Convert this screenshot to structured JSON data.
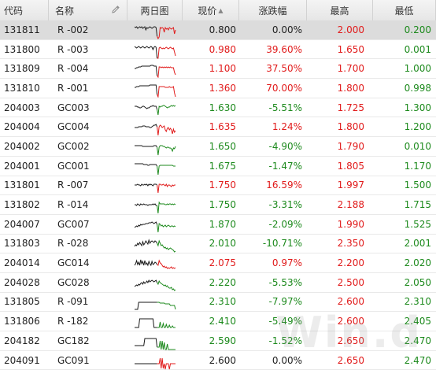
{
  "headers": {
    "code": "代码",
    "name": "名称",
    "spark": "两日图",
    "price": "现价",
    "change": "涨跌幅",
    "high": "最高",
    "low": "最低"
  },
  "sort_indicator": "▲",
  "watermark": "Win.d",
  "colors": {
    "up": "#e11b1b",
    "down": "#1d8a1d",
    "neutral": "#222222",
    "selected_row": "#dcdcdc"
  },
  "rows": [
    {
      "code": "131811",
      "name": "R -002",
      "price": "0.800",
      "change": "0.00%",
      "high": "2.000",
      "low": "0.200",
      "trend": "flat",
      "selected": true,
      "spark": [
        8,
        9,
        8,
        10,
        9,
        8,
        9,
        8,
        10,
        9,
        8,
        12,
        9,
        10,
        9,
        8,
        9,
        10,
        9,
        8,
        8,
        9,
        20,
        26,
        21,
        9,
        10,
        9,
        10,
        15,
        9,
        11,
        10,
        12,
        9,
        10,
        11,
        10,
        9,
        17,
        12
      ]
    },
    {
      "code": "131800",
      "name": "R -003",
      "price": "0.980",
      "change": "39.60%",
      "high": "1.650",
      "low": "0.001",
      "trend": "up",
      "spark": [
        8,
        9,
        10,
        9,
        8,
        9,
        10,
        9,
        8,
        9,
        10,
        9,
        8,
        9,
        10,
        9,
        8,
        9,
        12,
        9,
        8,
        9,
        23,
        27,
        10,
        9,
        10,
        11,
        10,
        11,
        10,
        9,
        10,
        11,
        10,
        9,
        10,
        11,
        10,
        15,
        20
      ]
    },
    {
      "code": "131809",
      "name": "R -004",
      "price": "1.100",
      "change": "37.50%",
      "high": "1.700",
      "low": "1.000",
      "trend": "up",
      "spark": [
        12,
        12,
        11,
        11,
        10,
        10,
        10,
        9,
        9,
        9,
        9,
        9,
        9,
        9,
        9,
        9,
        8,
        8,
        8,
        9,
        9,
        9,
        21,
        24,
        10,
        10,
        11,
        10,
        11,
        10,
        11,
        10,
        11,
        10,
        11,
        10,
        11,
        11,
        11,
        17,
        20
      ]
    },
    {
      "code": "131810",
      "name": "R -001",
      "price": "1.360",
      "change": "70.00%",
      "high": "1.800",
      "low": "0.998",
      "trend": "up",
      "spark": [
        11,
        11,
        10,
        10,
        10,
        9,
        9,
        9,
        9,
        9,
        9,
        9,
        9,
        9,
        9,
        8,
        8,
        8,
        8,
        8,
        8,
        8,
        20,
        26,
        10,
        10,
        10,
        10,
        10,
        10,
        11,
        11,
        11,
        11,
        10,
        11,
        11,
        11,
        10,
        18,
        23
      ]
    },
    {
      "code": "204003",
      "name": "GC003",
      "price": "1.630",
      "change": "-5.51%",
      "high": "1.725",
      "low": "1.300",
      "trend": "down",
      "spark": [
        10,
        10,
        10,
        11,
        11,
        12,
        12,
        11,
        10,
        10,
        11,
        12,
        13,
        12,
        12,
        11,
        10,
        10,
        9,
        10,
        10,
        10,
        14,
        21,
        10,
        11,
        10,
        10,
        9,
        9,
        10,
        11,
        12,
        11,
        11,
        10,
        9,
        10,
        9,
        10,
        9
      ]
    },
    {
      "code": "204004",
      "name": "GC004",
      "price": "1.635",
      "change": "1.24%",
      "high": "1.800",
      "low": "1.200",
      "trend": "up",
      "spark": [
        13,
        13,
        13,
        13,
        12,
        12,
        12,
        12,
        11,
        11,
        11,
        12,
        12,
        12,
        12,
        13,
        13,
        12,
        11,
        10,
        10,
        9,
        12,
        24,
        12,
        10,
        11,
        13,
        12,
        11,
        16,
        18,
        14,
        13,
        16,
        14,
        16,
        21,
        15,
        19,
        17
      ]
    },
    {
      "code": "204002",
      "name": "GC002",
      "price": "1.650",
      "change": "-4.90%",
      "high": "1.790",
      "low": "0.010",
      "trend": "down",
      "spark": [
        11,
        11,
        11,
        11,
        11,
        11,
        11,
        11,
        12,
        12,
        12,
        12,
        12,
        12,
        12,
        12,
        12,
        12,
        12,
        11,
        11,
        11,
        13,
        23,
        13,
        11,
        11,
        11,
        12,
        12,
        13,
        14,
        13,
        13,
        14,
        14,
        15,
        18,
        14,
        15,
        12
      ]
    },
    {
      "code": "204001",
      "name": "GC001",
      "price": "1.675",
      "change": "-1.47%",
      "high": "1.805",
      "low": "1.170",
      "trend": "down",
      "spark": [
        9,
        9,
        9,
        9,
        9,
        9,
        9,
        9,
        9,
        10,
        10,
        10,
        10,
        11,
        11,
        10,
        10,
        10,
        10,
        10,
        10,
        10,
        12,
        23,
        12,
        11,
        11,
        11,
        11,
        11,
        11,
        11,
        11,
        11,
        11,
        11,
        11,
        11,
        12,
        12,
        12
      ]
    },
    {
      "code": "131801",
      "name": "R -007",
      "price": "1.750",
      "change": "16.59%",
      "high": "1.997",
      "low": "1.500",
      "trend": "up",
      "spark": [
        12,
        12,
        12,
        11,
        12,
        12,
        13,
        11,
        12,
        12,
        11,
        12,
        11,
        13,
        11,
        12,
        11,
        12,
        13,
        11,
        11,
        11,
        12,
        22,
        11,
        11,
        12,
        12,
        11,
        12,
        13,
        11,
        14,
        12,
        12,
        13,
        14,
        12,
        13,
        12,
        12
      ]
    },
    {
      "code": "131802",
      "name": "R -014",
      "price": "1.750",
      "change": "-3.31%",
      "high": "2.188",
      "low": "1.715",
      "trend": "down",
      "spark": [
        12,
        12,
        13,
        11,
        12,
        13,
        11,
        12,
        12,
        11,
        12,
        12,
        12,
        13,
        12,
        12,
        12,
        12,
        11,
        12,
        11,
        13,
        13,
        24,
        9,
        11,
        11,
        11,
        11,
        11,
        12,
        12,
        11,
        12,
        11,
        11,
        12,
        11,
        12,
        11,
        12
      ]
    },
    {
      "code": "204007",
      "name": "GC007",
      "price": "1.870",
      "change": "-2.09%",
      "high": "1.990",
      "low": "1.525",
      "trend": "down",
      "spark": [
        16,
        15,
        14,
        15,
        13,
        14,
        12,
        13,
        12,
        12,
        12,
        11,
        11,
        11,
        10,
        10,
        10,
        9,
        10,
        11,
        10,
        9,
        12,
        22,
        11,
        12,
        14,
        13,
        15,
        14,
        13,
        15,
        14,
        13,
        14,
        15,
        14,
        14,
        15,
        14,
        15
      ]
    },
    {
      "code": "131803",
      "name": "R -028",
      "price": "2.010",
      "change": "-10.71%",
      "high": "2.350",
      "low": "2.001",
      "trend": "down",
      "spark": [
        16,
        14,
        15,
        12,
        14,
        11,
        13,
        15,
        10,
        14,
        12,
        9,
        11,
        13,
        8,
        12,
        10,
        9,
        10,
        11,
        9,
        10,
        12,
        15,
        9,
        12,
        15,
        14,
        16,
        18,
        17,
        19,
        18,
        20,
        19,
        18,
        19,
        20,
        21,
        23,
        22
      ]
    },
    {
      "code": "204014",
      "name": "GC014",
      "price": "2.075",
      "change": "0.97%",
      "high": "2.200",
      "low": "2.020",
      "trend": "up",
      "spark": [
        15,
        13,
        9,
        14,
        11,
        15,
        8,
        13,
        10,
        15,
        9,
        14,
        12,
        15,
        10,
        13,
        15,
        10,
        14,
        13,
        11,
        12,
        14,
        15,
        9,
        12,
        13,
        15,
        17,
        16,
        18,
        17,
        19,
        18,
        19,
        18,
        17,
        19,
        18,
        19,
        18
      ]
    },
    {
      "code": "204028",
      "name": "GC028",
      "price": "2.220",
      "change": "-5.53%",
      "high": "2.500",
      "low": "2.050",
      "trend": "down",
      "spark": [
        17,
        16,
        15,
        16,
        14,
        15,
        13,
        12,
        14,
        11,
        13,
        12,
        10,
        12,
        9,
        11,
        10,
        9,
        10,
        11,
        10,
        9,
        12,
        14,
        10,
        12,
        13,
        14,
        15,
        16,
        15,
        17,
        16,
        18,
        19,
        19,
        18,
        21,
        20,
        22,
        21
      ]
    },
    {
      "code": "131805",
      "name": "R -091",
      "price": "2.310",
      "change": "-7.97%",
      "high": "2.600",
      "low": "2.310",
      "trend": "down",
      "spark": [
        22,
        22,
        22,
        22,
        13,
        13,
        13,
        13,
        13,
        13,
        13,
        13,
        13,
        13,
        13,
        13,
        13,
        13,
        13,
        13,
        13,
        13,
        13,
        13,
        13,
        14,
        14,
        14,
        14,
        14,
        15,
        15,
        15,
        15,
        15,
        17,
        17,
        17,
        17,
        17,
        22
      ]
    },
    {
      "code": "131806",
      "name": "R -182",
      "price": "2.410",
      "change": "-5.49%",
      "high": "2.600",
      "low": "2.405",
      "trend": "down",
      "spark": [
        20,
        20,
        20,
        20,
        20,
        9,
        9,
        9,
        9,
        9,
        9,
        9,
        9,
        9,
        9,
        9,
        9,
        9,
        9,
        20,
        20,
        20,
        20,
        20,
        20,
        13,
        20,
        20,
        15,
        20,
        20,
        16,
        20,
        20,
        17,
        20,
        20,
        18,
        20,
        20,
        20
      ]
    },
    {
      "code": "204182",
      "name": "GC182",
      "price": "2.590",
      "change": "-1.52%",
      "high": "2.650",
      "low": "2.470",
      "trend": "down",
      "spark": [
        18,
        18,
        18,
        18,
        18,
        18,
        18,
        18,
        18,
        18,
        9,
        9,
        9,
        9,
        9,
        9,
        9,
        9,
        9,
        9,
        9,
        9,
        20,
        20,
        20,
        12,
        23,
        12,
        23,
        14,
        23,
        23,
        16,
        23,
        23,
        23,
        23,
        23,
        23,
        23,
        23
      ]
    },
    {
      "code": "204091",
      "name": "GC091",
      "price": "2.600",
      "change": "0.00%",
      "high": "2.650",
      "low": "2.470",
      "trend": "flat",
      "spark": [
        16,
        16,
        16,
        16,
        16,
        16,
        16,
        16,
        16,
        16,
        16,
        16,
        16,
        16,
        16,
        16,
        16,
        16,
        16,
        16,
        16,
        16,
        16,
        16,
        16,
        9,
        22,
        9,
        22,
        16,
        24,
        16,
        16,
        16,
        24,
        16,
        16,
        16,
        16,
        16,
        16
      ]
    }
  ]
}
